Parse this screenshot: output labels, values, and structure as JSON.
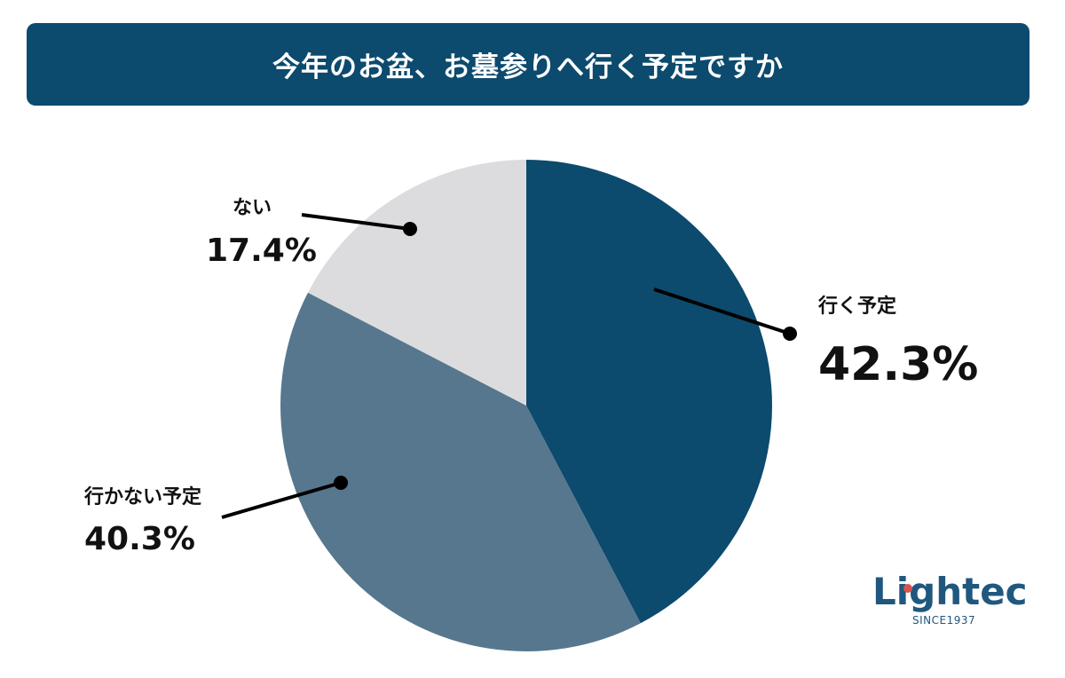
{
  "header": {
    "title": "今年のお盆、お墓参りへ行く予定ですか"
  },
  "colors": {
    "banner": "#0c4a6e",
    "slice_going": "#0c4a6e",
    "slice_not_going": "#56778e",
    "slice_none": "#dcdcdf",
    "leader": "#000000"
  },
  "chart_data": {
    "type": "pie",
    "title": "今年のお盆、お墓参りへ行く予定ですか",
    "start_angle_deg": 0,
    "direction": "clockwise",
    "slices": [
      {
        "label": "行く予定",
        "value": 42.3,
        "value_label": "42.3%",
        "color": "#0c4a6e"
      },
      {
        "label": "行かない予定",
        "value": 40.3,
        "value_label": "40.3%",
        "color": "#56778e"
      },
      {
        "label": "ない",
        "value": 17.4,
        "value_label": "17.4%",
        "color": "#dcdcdf"
      }
    ]
  },
  "logo": {
    "word": "Lightec",
    "tagline": "SINCE1937",
    "accent": "#d9534f"
  }
}
